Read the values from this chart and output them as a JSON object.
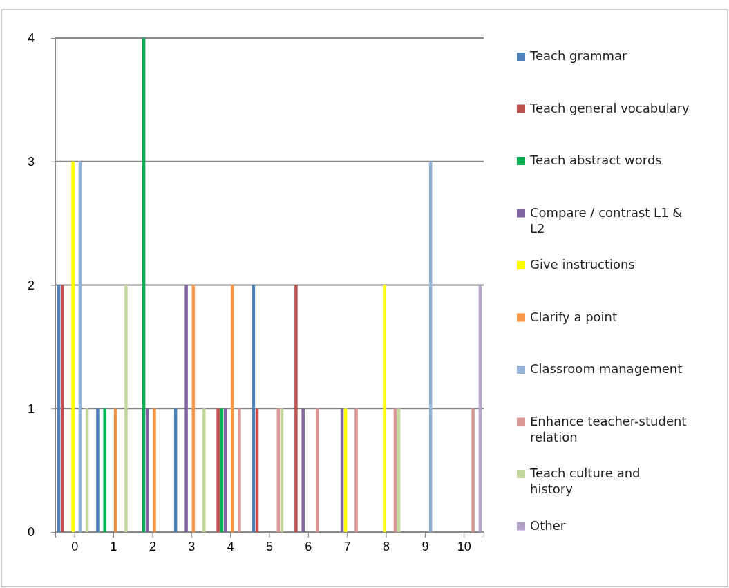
{
  "chart_data": {
    "type": "bar",
    "categories": [
      "0",
      "1",
      "2",
      "3",
      "4",
      "5",
      "6",
      "7",
      "8",
      "9",
      "10"
    ],
    "ylim": [
      0,
      4
    ],
    "yticks": [
      0,
      1,
      2,
      3,
      4
    ],
    "grid": "y",
    "legend": "right",
    "series": [
      {
        "name": "Teach grammar",
        "color": "#4f81bd",
        "values": [
          2,
          1,
          0,
          1,
          0,
          2,
          0,
          0,
          0,
          0,
          0
        ]
      },
      {
        "name": "Teach general vocabulary",
        "color": "#c0504d",
        "values": [
          2,
          0,
          0,
          0,
          1,
          1,
          2,
          0,
          0,
          0,
          0
        ]
      },
      {
        "name": "Teach abstract words",
        "color": "#00b050",
        "values": [
          0,
          1,
          4,
          0,
          1,
          0,
          0,
          0,
          0,
          0,
          0
        ]
      },
      {
        "name": "Compare / contrast L1 & L2",
        "color": "#8064a2",
        "values": [
          0,
          0,
          1,
          2,
          1,
          0,
          1,
          1,
          0,
          0,
          0
        ]
      },
      {
        "name": "Give instructions",
        "color": "#ffff00",
        "values": [
          3,
          0,
          0,
          0,
          0,
          0,
          0,
          1,
          2,
          0,
          0
        ]
      },
      {
        "name": "Clarify a point",
        "color": "#f79646",
        "values": [
          0,
          1,
          1,
          2,
          2,
          0,
          0,
          0,
          0,
          0,
          0
        ]
      },
      {
        "name": "Classroom management",
        "color": "#95b3d7",
        "values": [
          3,
          0,
          0,
          0,
          0,
          0,
          0,
          0,
          0,
          3,
          0
        ]
      },
      {
        "name": "Enhance teacher-student relation",
        "color": "#d99694",
        "values": [
          0,
          0,
          0,
          0,
          1,
          1,
          1,
          1,
          1,
          0,
          1
        ]
      },
      {
        "name": "Teach culture and history",
        "color": "#c3d69b",
        "values": [
          1,
          2,
          0,
          1,
          0,
          1,
          0,
          0,
          1,
          0,
          0
        ]
      },
      {
        "name": "Other",
        "color": "#b3a2c7",
        "values": [
          0,
          0,
          0,
          0,
          0,
          0,
          0,
          0,
          0,
          0,
          2
        ]
      }
    ]
  }
}
